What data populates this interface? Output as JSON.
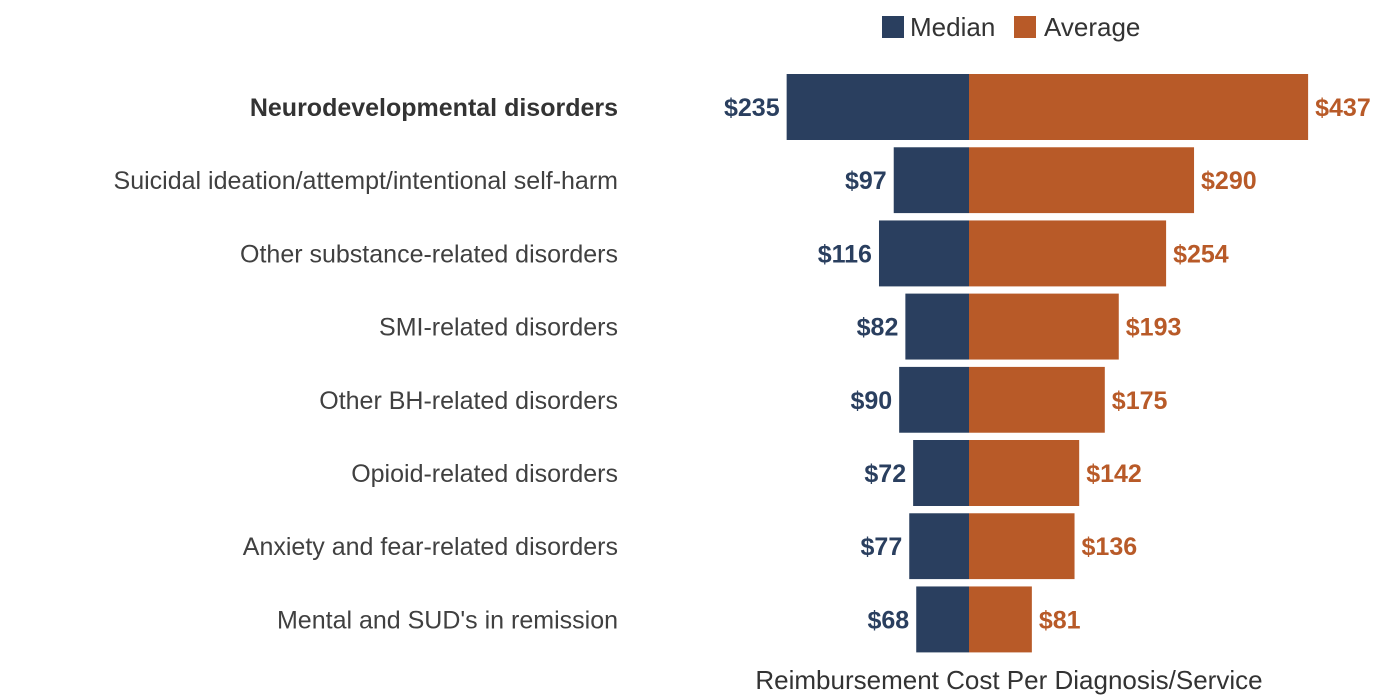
{
  "chart_data": {
    "type": "bar",
    "orientation": "horizontal-diverging",
    "categories": [
      "Neurodevelopmental disorders",
      "Suicidal ideation/attempt/intentional self-harm",
      "Other substance-related disorders",
      "SMI-related disorders",
      "Other BH-related disorders",
      "Opioid-related disorders",
      "Anxiety and fear-related disorders",
      "Mental and SUD's in remission"
    ],
    "highlighted_category": "Neurodevelopmental disorders",
    "series": [
      {
        "name": "Median",
        "color": "#2a3f5f",
        "values": [
          235,
          97,
          116,
          82,
          90,
          72,
          77,
          68
        ],
        "labels": [
          "$235",
          "$97",
          "$116",
          "$82",
          "$90",
          "$72",
          "$77",
          "$68"
        ]
      },
      {
        "name": "Average",
        "color": "#b85a28",
        "values": [
          437,
          290,
          254,
          193,
          175,
          142,
          136,
          81
        ],
        "labels": [
          "$437",
          "$290",
          "$254",
          "$193",
          "$175",
          "$142",
          "$136",
          "$81"
        ]
      }
    ],
    "xlabel": "Reimbursement Cost Per Diagnosis/Service",
    "legend_position": "top",
    "grid": false
  }
}
